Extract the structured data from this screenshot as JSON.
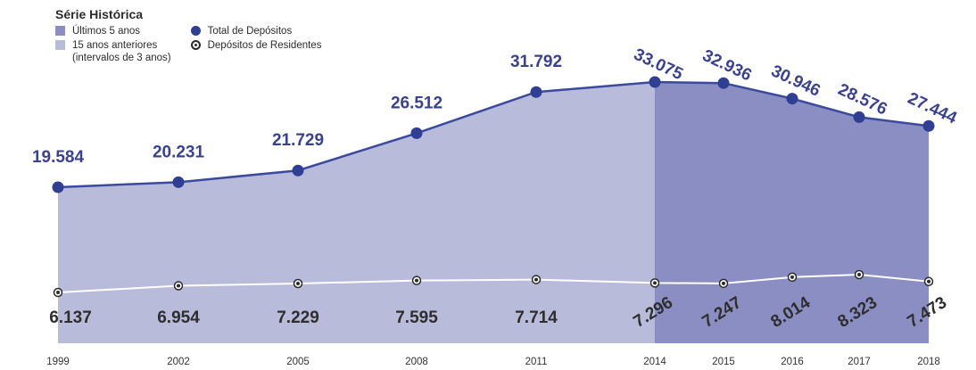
{
  "legend": {
    "title": "Série Histórica",
    "recent_label": "Últimos 5 anos",
    "older_label": "15 anos anteriores",
    "older_note": "(intervalos de 3 anos)",
    "total_label": "Total de Depósitos",
    "resident_label": "Depósitos de Residentes"
  },
  "colors": {
    "recent_fill": "#8a8ec2",
    "older_fill": "#b9bbdb",
    "total_line": "#3b4a9c",
    "total_dot": "#2e3f94",
    "resident_line": "#ffffff",
    "resident_dot": "#2b2b2b",
    "label_text": "#3a4290",
    "resident_text": "#2e2e2e",
    "year_text": "#333333"
  },
  "chart_data": {
    "type": "area",
    "categories": [
      "1999",
      "2002",
      "2005",
      "2008",
      "2011",
      "2014",
      "2015",
      "2016",
      "2017",
      "2018"
    ],
    "series": [
      {
        "name": "Total de Depósitos",
        "values": [
          19584,
          20231,
          21729,
          26512,
          31792,
          33075,
          32936,
          30946,
          28576,
          27444
        ],
        "labels": [
          "19.584",
          "20.231",
          "21.729",
          "26.512",
          "31.792",
          "33.075",
          "32.936",
          "30.946",
          "28.576",
          "27.444"
        ]
      },
      {
        "name": "Depósitos de Residentes",
        "values": [
          6137,
          6954,
          7229,
          7595,
          7714,
          7296,
          7247,
          8014,
          8323,
          7473
        ],
        "labels": [
          "6.137",
          "6.954",
          "7.229",
          "7.595",
          "7.714",
          "7.296",
          "7.247",
          "8.014",
          "8.323",
          "7.473"
        ]
      }
    ],
    "highlight_from": "2014",
    "grid": false
  }
}
